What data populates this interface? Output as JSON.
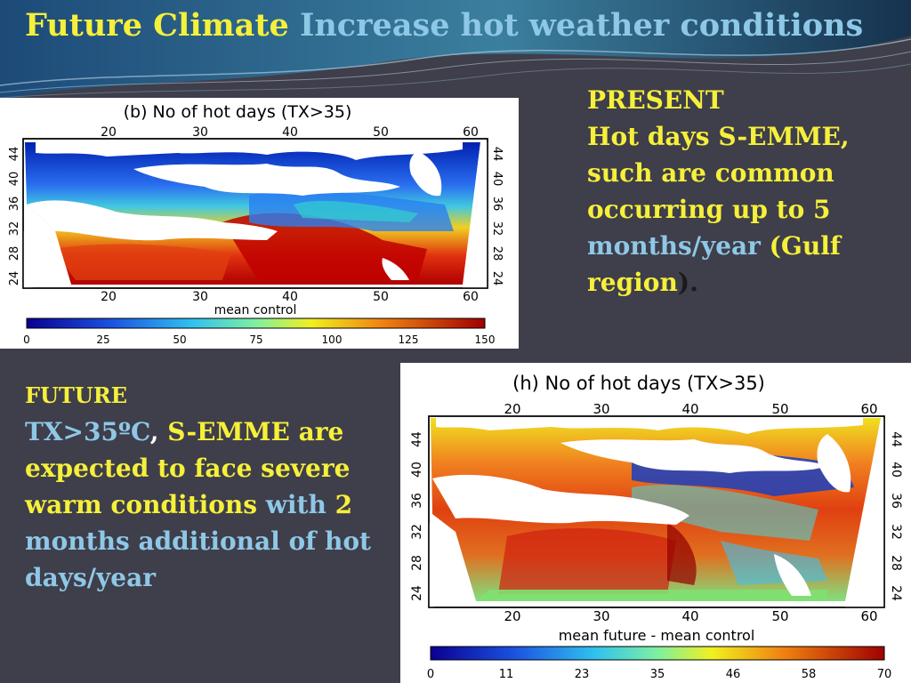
{
  "slide": {
    "title_part1": "Future Climate",
    "title_part2": "Increase hot weather conditions"
  },
  "present": {
    "heading": "PRESENT",
    "line1": "Hot days S-EMME,",
    "line2": "such are common",
    "line3a": "occurring up to",
    "line3b": "5",
    "line4a": "months/year",
    "line4b": "(Gulf",
    "line5a": "region",
    "line5b": ")."
  },
  "future": {
    "heading": "FUTURE",
    "seg1": "TX>35ºC",
    "seg2": ",",
    "seg3": "S-EMME are expected to face severe warm conditions",
    "seg4": "with",
    "seg5": "2",
    "seg6": "months  additional of hot days/year"
  },
  "map_present": {
    "title": "(b) No of hot days (TX>35)",
    "caption": "mean control",
    "x_ticks": [
      "20",
      "30",
      "40",
      "50",
      "60"
    ],
    "y_ticks": [
      "44",
      "40",
      "36",
      "32",
      "28",
      "24"
    ],
    "colorbar_ticks": [
      "0",
      "25",
      "50",
      "75",
      "100",
      "125",
      "150"
    ]
  },
  "map_future": {
    "title": "(h) No of hot days (TX>35)",
    "caption": "mean future - mean control",
    "x_ticks": [
      "20",
      "30",
      "40",
      "50",
      "60"
    ],
    "y_ticks": [
      "44",
      "40",
      "36",
      "32",
      "28",
      "24"
    ],
    "colorbar_ticks": [
      "0",
      "11",
      "23",
      "35",
      "46",
      "58",
      "70"
    ]
  }
}
